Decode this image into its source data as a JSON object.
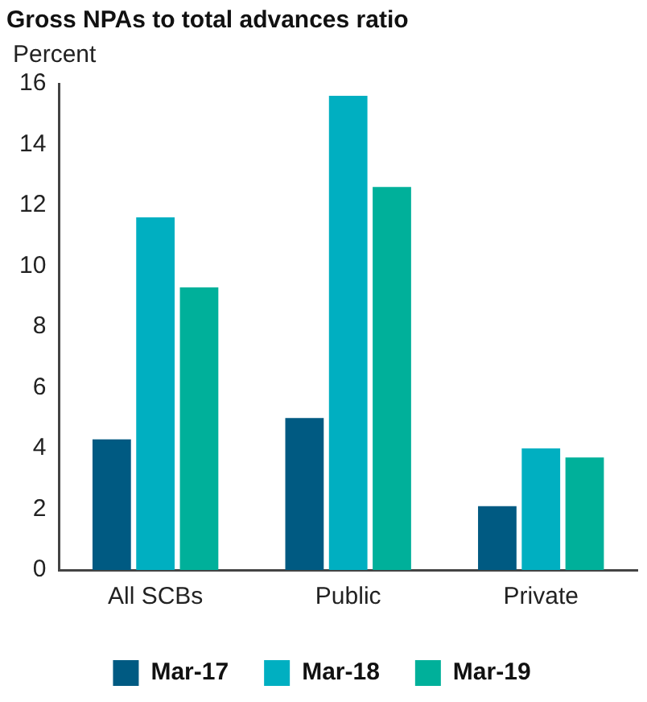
{
  "chart_data": {
    "type": "bar",
    "title": "Gross NPAs to total advances ratio",
    "ylabel": "Percent",
    "categories": [
      "All SCBs",
      "Public",
      "Private"
    ],
    "series": [
      {
        "name": "Mar-17",
        "color": "#005a82",
        "values": [
          4.3,
          5.0,
          2.1
        ]
      },
      {
        "name": "Mar-18",
        "color": "#00afc1",
        "values": [
          11.6,
          15.6,
          4.0
        ]
      },
      {
        "name": "Mar-19",
        "color": "#00b09a",
        "values": [
          9.3,
          12.6,
          3.7
        ]
      }
    ],
    "ylim": [
      0,
      16
    ],
    "yticks": [
      0,
      2,
      4,
      6,
      8,
      10,
      12,
      14,
      16
    ],
    "grid": false,
    "legend": "bottom"
  }
}
